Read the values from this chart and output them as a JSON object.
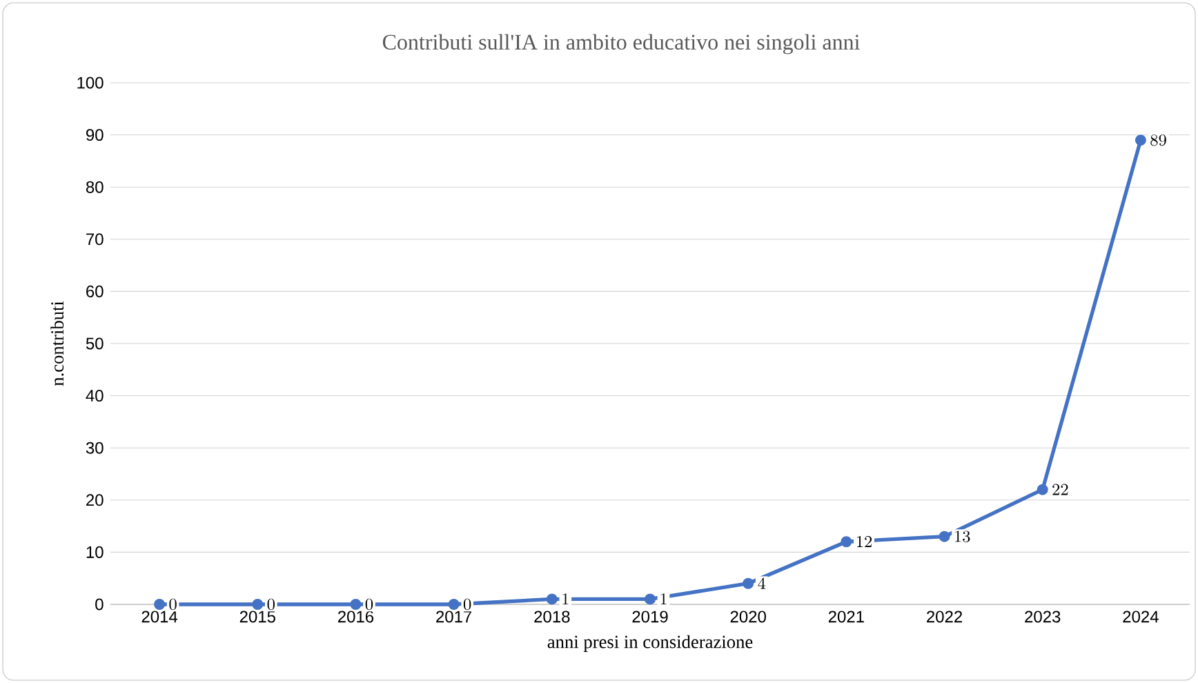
{
  "chart_data": {
    "type": "line",
    "title": "Contributi sull'IA in ambito educativo nei singoli anni",
    "xlabel": "anni presi in considerazione",
    "ylabel": "n.contributi",
    "categories": [
      "2014",
      "2015",
      "2016",
      "2017",
      "2018",
      "2019",
      "2020",
      "2021",
      "2022",
      "2023",
      "2024"
    ],
    "values": [
      0,
      0,
      0,
      0,
      1,
      1,
      4,
      12,
      13,
      22,
      89
    ],
    "color": "#4472c4",
    "ylim": [
      0,
      100
    ],
    "yticks": [
      0,
      10,
      20,
      30,
      40,
      50,
      60,
      70,
      80,
      90,
      100
    ],
    "grid": "y",
    "marker": "circle",
    "line_style": "solid",
    "data_labels": true
  }
}
